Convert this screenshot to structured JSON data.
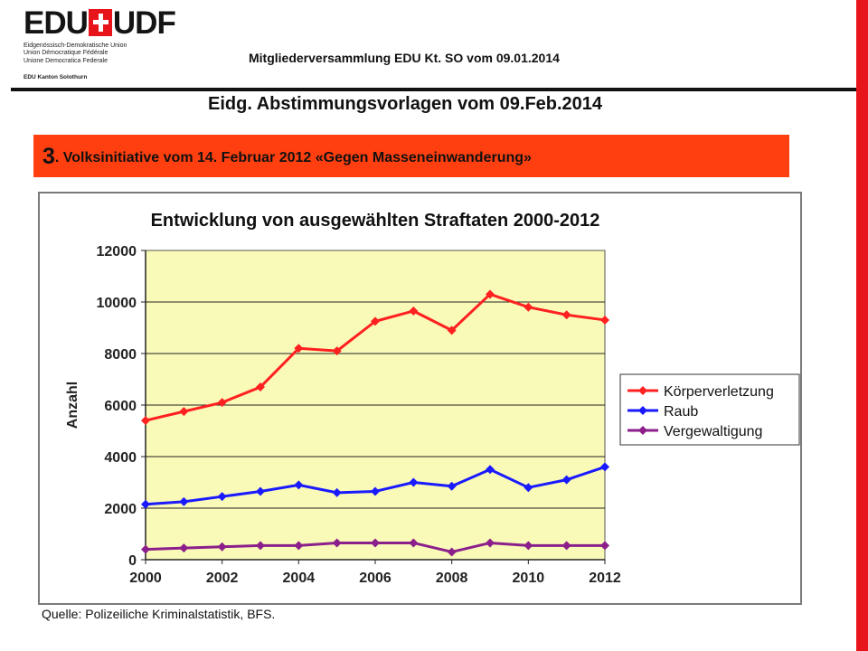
{
  "logo": {
    "title_left": "EDU",
    "title_right": "UDF",
    "lines": [
      "Eidgenössisch-Demokratische Union",
      "Union Démocratique Fédérale",
      "Unione Democratica Federale"
    ],
    "kanton": "EDU Kanton Solothurn"
  },
  "header": {
    "meeting": "Mitgliederversammlung EDU Kt. SO vom 09.01.2014"
  },
  "slide": {
    "title": "Eidg. Abstimmungsvorlagen vom 09.Feb.2014",
    "banner_number": "3",
    "banner_text": ". Volksinitiative vom 14. Februar 2012  «Gegen Masseneinwanderung»"
  },
  "colors": {
    "accent_red": "#e8141b",
    "banner": "#ff3f0f",
    "plot_bg": "#fafab8"
  },
  "chart_data": {
    "type": "line",
    "title": "Entwicklung von ausgewählten Straftaten 2000-2012",
    "ylabel": "Anzahl",
    "xlabel": "",
    "x": [
      2000,
      2001,
      2002,
      2003,
      2004,
      2005,
      2006,
      2007,
      2008,
      2009,
      2010,
      2011,
      2012
    ],
    "x_ticks": [
      "2000",
      "2002",
      "2004",
      "2006",
      "2008",
      "2010",
      "2012"
    ],
    "xlim": [
      2000,
      2012
    ],
    "ylim": [
      0,
      12000
    ],
    "y_ticks": [
      "0",
      "2000",
      "4000",
      "6000",
      "8000",
      "10000",
      "12000"
    ],
    "grid": true,
    "legend_position": "right",
    "series": [
      {
        "name": "Körperverletzung",
        "color": "#ff2020",
        "values": [
          5400,
          5750,
          6100,
          6700,
          8200,
          8100,
          9250,
          9650,
          8900,
          10300,
          9800,
          9500,
          9300
        ]
      },
      {
        "name": "Raub",
        "color": "#1a1aff",
        "values": [
          2150,
          2250,
          2450,
          2650,
          2900,
          2600,
          2650,
          3000,
          2850,
          3500,
          2800,
          3100,
          3600
        ]
      },
      {
        "name": "Vergewaltigung",
        "color": "#8b1f8b",
        "values": [
          400,
          450,
          500,
          550,
          550,
          650,
          650,
          650,
          300,
          650,
          550,
          550,
          550
        ]
      }
    ],
    "source": "Quelle: Polizeiliche Kriminalstatistik, BFS."
  }
}
